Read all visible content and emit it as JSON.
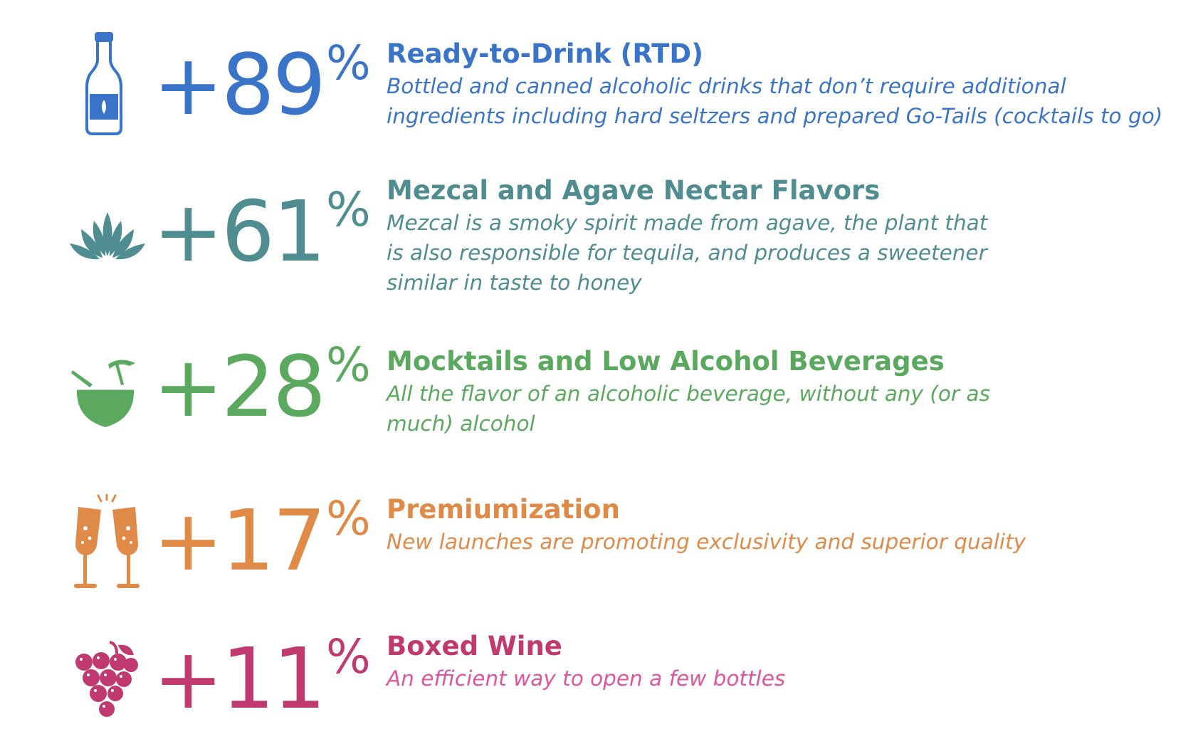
{
  "colors": {
    "rtd": "#3a74c8",
    "mezcal": "#4f8d91",
    "mocktails": "#5aa95e",
    "premium": "#e08a48",
    "boxed": "#c0396f",
    "boxed_desc": "#e0559b"
  },
  "trends": [
    {
      "icon": "bottle-icon",
      "value": "+89",
      "percent": "%",
      "title": "Ready-to-Drink (RTD)",
      "description_lines": [
        "Bottled and canned alcoholic drinks that don’t require additional",
        "ingredients including hard seltzers and prepared Go-Tails (cocktails to go)"
      ]
    },
    {
      "icon": "agave-plant-icon",
      "value": "+61",
      "percent": "%",
      "title": "Mezcal and Agave Nectar Flavors",
      "description_lines": [
        "Mezcal is a smoky spirit made from agave, the plant that",
        "is also responsible for tequila, and produces a sweetener",
        "similar in taste to honey"
      ]
    },
    {
      "icon": "coconut-drink-icon",
      "value": "+28",
      "percent": "%",
      "title": "Mocktails and Low Alcohol Beverages",
      "description_lines": [
        "All the flavor of an alcoholic beverage, without any (or as",
        "much) alcohol"
      ]
    },
    {
      "icon": "champagne-toast-icon",
      "value": "+17",
      "percent": "%",
      "title": "Premiumization",
      "description_lines": [
        "New launches are promoting exclusivity and superior quality"
      ]
    },
    {
      "icon": "grapes-icon",
      "value": "+11",
      "percent": "%",
      "title": "Boxed Wine",
      "description_lines": [
        "An efficient way to open a few bottles"
      ]
    }
  ]
}
